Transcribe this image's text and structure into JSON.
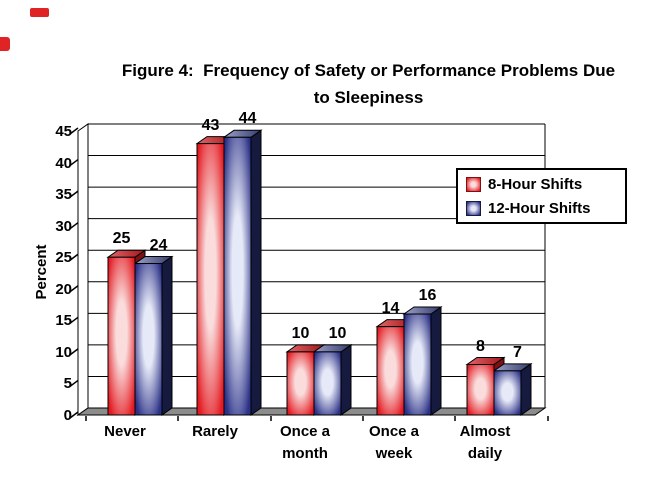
{
  "figure_title": {
    "line1": "Figure 4:  Frequency of Safety or Performance Problems Due",
    "line2": "to Sleepiness"
  },
  "chart_data": {
    "type": "bar",
    "style_3d": true,
    "title": "Figure 4: Frequency of Safety or Performance Problems Due to Sleepiness",
    "categories": [
      "Never",
      "Rarely",
      "Once a month",
      "Once a week",
      "Almost daily"
    ],
    "category_label_lines": [
      [
        "Never"
      ],
      [
        "Rarely"
      ],
      [
        "Once a",
        "month"
      ],
      [
        "Once a",
        "week"
      ],
      [
        "Almost",
        "daily"
      ]
    ],
    "series": [
      {
        "name": "8-Hour Shifts",
        "values": [
          25,
          43,
          10,
          14,
          8
        ],
        "color_main": "#e31b22",
        "color_highlight": "#fadcdc",
        "color_dark": "#7c1013",
        "color_top_light": "#df666a",
        "color_top_dark": "#a31619"
      },
      {
        "name": "12-Hour Shifts",
        "values": [
          24,
          44,
          10,
          16,
          7
        ],
        "color_main": "#2b3187",
        "color_highlight": "#e6e9f7",
        "color_dark": "#151a3e",
        "color_top_light": "#9aa1c8",
        "color_top_dark": "#353c6e"
      }
    ],
    "xlabel": "",
    "ylabel": "Percent",
    "ylim": [
      0,
      45
    ],
    "yticks": [
      0,
      5,
      10,
      15,
      20,
      25,
      30,
      35,
      40,
      45
    ],
    "grid": true,
    "legend_position": "middle-right",
    "value_labels_shown": true,
    "floor_color": "#8c8c8c",
    "wall_color": "#ffffff",
    "axis_color": "#000000",
    "text_color": "#000000"
  },
  "decorations": {
    "red_mark_color": "#e02425"
  }
}
